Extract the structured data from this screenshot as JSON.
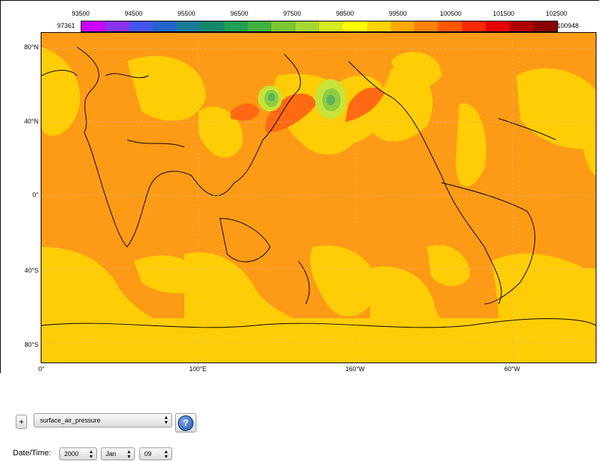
{
  "colorbar": {
    "tick_labels": [
      "93500",
      "94500",
      "95500",
      "96500",
      "97500",
      "98500",
      "99500",
      "100500",
      "101500",
      "102500"
    ],
    "min_label": "97361",
    "max_label": "100948",
    "colors": [
      "#cc00ff",
      "#8833ee",
      "#4455ee",
      "#2266cc",
      "#1b7a9a",
      "#128a6a",
      "#22a055",
      "#3fb23f",
      "#7dc42f",
      "#a5d832",
      "#d6ec22",
      "#ffff00",
      "#ffd200",
      "#ffa800",
      "#ff8200",
      "#ff5600",
      "#ff2a00",
      "#e80000",
      "#b00000",
      "#880000"
    ]
  },
  "map": {
    "lat_labels": [
      "80°N",
      "40°N",
      "0°",
      "40°S",
      "80°S"
    ],
    "lon_labels": [
      "0°",
      "100°E",
      "160°W",
      "60°W"
    ],
    "field_colors": {
      "base": "#fd9b16",
      "mid": "#ffcd05",
      "high": "#ff6a12",
      "low1": "#c7e33a",
      "low2": "#8ccd42",
      "low3": "#5ab35a",
      "coast": "#000000"
    }
  },
  "controls": {
    "plus_label": "+",
    "variable_select": "surface_air_pressure",
    "help_label": "?",
    "datetime_label": "Date/Time:",
    "year": "2000",
    "month": "Jan",
    "day": "09"
  }
}
